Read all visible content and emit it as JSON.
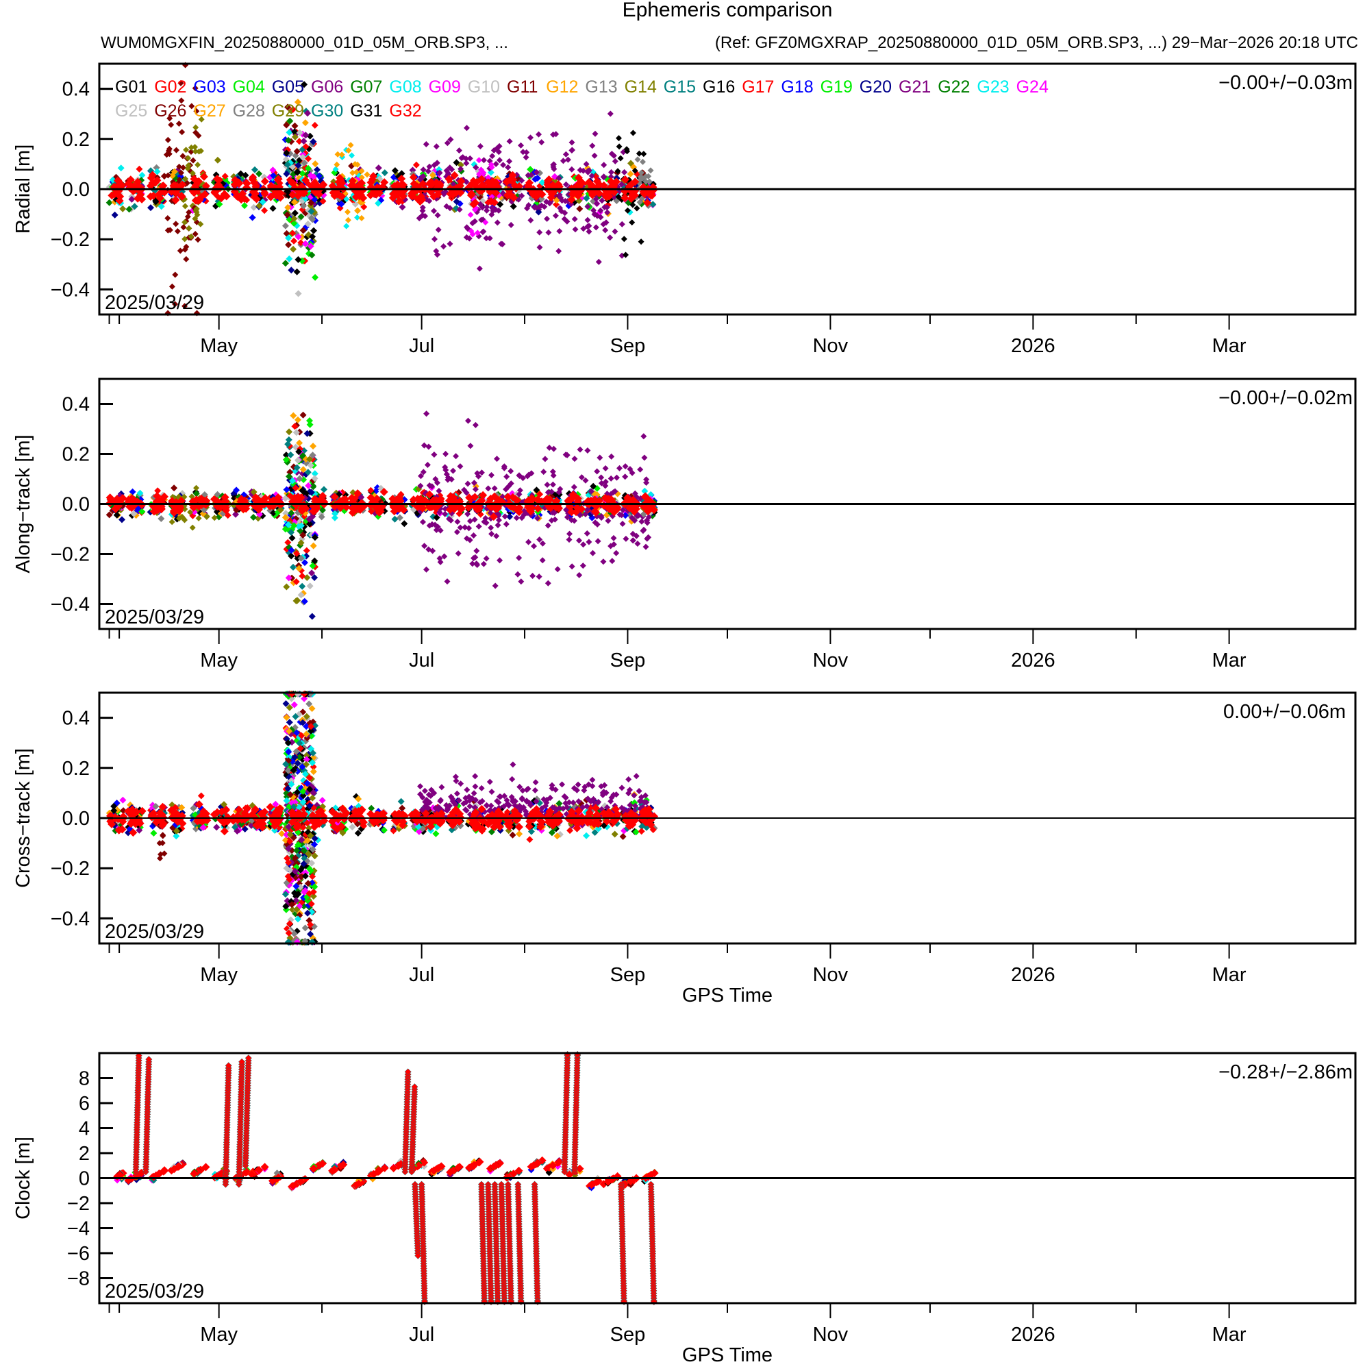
{
  "chart_data": {
    "type": "scatter",
    "title": "Ephemeris comparison",
    "subtitle_left": "WUM0MGXFIN_20250880000_01D_05M_ORB.SP3, ...",
    "subtitle_right": "(Ref: GFZ0MGXRAP_20250880000_01D_05M_ORB.SP3, ...) 29−Mar−2026 20:18 UTC",
    "xlabel": "GPS Time",
    "xrange": [
      "2025-03-26",
      "2026-04-08"
    ],
    "data_end": "2025-09-10",
    "x_ticks_major": [
      {
        "date": "2025-05-01",
        "label": "May"
      },
      {
        "date": "2025-07-01",
        "label": "Jul"
      },
      {
        "date": "2025-09-01",
        "label": "Sep"
      },
      {
        "date": "2025-11-01",
        "label": "Nov"
      },
      {
        "date": "2026-01-01",
        "label": "2026"
      },
      {
        "date": "2026-03-01",
        "label": "Mar"
      }
    ],
    "x_ticks_minor": [
      "2025-04-01",
      "2025-06-01",
      "2025-08-01",
      "2025-10-01",
      "2025-12-01",
      "2026-02-01"
    ],
    "legend": {
      "placement": "top-left",
      "entries": [
        {
          "name": "G01",
          "color": "#000000"
        },
        {
          "name": "G02",
          "color": "#ff0000"
        },
        {
          "name": "G03",
          "color": "#0000ff"
        },
        {
          "name": "G04",
          "color": "#00ee00"
        },
        {
          "name": "G05",
          "color": "#00008b"
        },
        {
          "name": "G06",
          "color": "#800080"
        },
        {
          "name": "G07",
          "color": "#008000"
        },
        {
          "name": "G08",
          "color": "#00eeee"
        },
        {
          "name": "G09",
          "color": "#ff00ff"
        },
        {
          "name": "G10",
          "color": "#c0c0c0"
        },
        {
          "name": "G11",
          "color": "#800000"
        },
        {
          "name": "G12",
          "color": "#ffa500"
        },
        {
          "name": "G13",
          "color": "#808080"
        },
        {
          "name": "G14",
          "color": "#808000"
        },
        {
          "name": "G15",
          "color": "#008080"
        },
        {
          "name": "G16",
          "color": "#000000"
        },
        {
          "name": "G17",
          "color": "#ff0000"
        },
        {
          "name": "G18",
          "color": "#0000ff"
        },
        {
          "name": "G19",
          "color": "#00ee00"
        },
        {
          "name": "G20",
          "color": "#00008b"
        },
        {
          "name": "G21",
          "color": "#800080"
        },
        {
          "name": "G22",
          "color": "#008000"
        },
        {
          "name": "G23",
          "color": "#00eeee"
        },
        {
          "name": "G24",
          "color": "#ff00ff"
        },
        {
          "name": "G25",
          "color": "#c0c0c0"
        },
        {
          "name": "G26",
          "color": "#800000"
        },
        {
          "name": "G27",
          "color": "#ffa500"
        },
        {
          "name": "G28",
          "color": "#808080"
        },
        {
          "name": "G29",
          "color": "#808000"
        },
        {
          "name": "G30",
          "color": "#008080"
        },
        {
          "name": "G31",
          "color": "#000000"
        },
        {
          "name": "G32",
          "color": "#ff0000"
        }
      ]
    },
    "panels": [
      {
        "id": "radial",
        "ylabel": "Radial [m]",
        "ylim": [
          -0.5,
          0.5
        ],
        "yticks": [
          {
            "v": 0.4,
            "label": "0.4"
          },
          {
            "v": 0.2,
            "label": "0.2"
          },
          {
            "v": 0.0,
            "label": "0.0"
          },
          {
            "v": -0.2,
            "label": "−0.2"
          },
          {
            "v": -0.4,
            "label": "−0.4"
          }
        ],
        "stats": "−0.00+/−0.03m",
        "date_label": "2025/03/29",
        "show_legend": true,
        "show_xlabel": false,
        "core_spread": 0.03,
        "outliers": [
          {
            "prn": "G26",
            "from": "2025-04-15",
            "to": "2025-04-25",
            "spread": 0.22,
            "count": 70
          },
          {
            "prn": "G14",
            "from": "2025-04-20",
            "to": "2025-04-26",
            "spread": 0.12,
            "count": 30
          },
          {
            "prn": "G06",
            "from": "2025-06-30",
            "to": "2025-08-31",
            "spread": 0.11,
            "count": 260
          },
          {
            "prn": "G08",
            "from": "2025-06-05",
            "to": "2025-06-12",
            "spread": 0.08,
            "count": 20
          },
          {
            "prn": "G12",
            "from": "2025-06-05",
            "to": "2025-06-15",
            "spread": 0.08,
            "count": 20
          },
          {
            "prn": "G09",
            "from": "2025-07-15",
            "to": "2025-07-25",
            "spread": 0.1,
            "count": 25
          },
          {
            "prn": "G01",
            "from": "2025-08-29",
            "to": "2025-09-06",
            "spread": 0.12,
            "count": 25
          },
          {
            "prn": "G13",
            "from": "2025-09-03",
            "to": "2025-09-08",
            "spread": 0.08,
            "count": 20
          }
        ],
        "burst": {
          "from": "2025-05-21",
          "to": "2025-05-30",
          "spread": 0.16,
          "count": 220
        }
      },
      {
        "id": "along",
        "ylabel": "Along−track [m]",
        "ylim": [
          -0.5,
          0.5
        ],
        "yticks": [
          {
            "v": 0.4,
            "label": "0.4"
          },
          {
            "v": 0.2,
            "label": "0.2"
          },
          {
            "v": 0.0,
            "label": "0.0"
          },
          {
            "v": -0.2,
            "label": "−0.2"
          },
          {
            "v": -0.4,
            "label": "−0.4"
          }
        ],
        "stats": "−0.00+/−0.02m",
        "date_label": "2025/03/29",
        "show_legend": false,
        "show_xlabel": false,
        "core_spread": 0.02,
        "outliers": [
          {
            "prn": "G06",
            "from": "2025-06-30",
            "to": "2025-09-08",
            "spread": 0.13,
            "count": 300
          },
          {
            "prn": "G14",
            "from": "2025-04-15",
            "to": "2025-04-30",
            "spread": 0.04,
            "count": 30
          }
        ],
        "burst": {
          "from": "2025-05-21",
          "to": "2025-05-30",
          "spread": 0.18,
          "count": 220
        }
      },
      {
        "id": "cross",
        "ylabel": "Cross−track [m]",
        "ylim": [
          -0.5,
          0.5
        ],
        "yticks": [
          {
            "v": 0.4,
            "label": "0.4"
          },
          {
            "v": 0.2,
            "label": "0.2"
          },
          {
            "v": 0.0,
            "label": "0.0"
          },
          {
            "v": -0.2,
            "label": "−0.2"
          },
          {
            "v": -0.4,
            "label": "−0.4"
          }
        ],
        "stats": "0.00+/−0.06m",
        "date_label": "2025/03/29",
        "show_legend": false,
        "show_xlabel": true,
        "core_spread": 0.025,
        "outliers": [
          {
            "prn": "G06",
            "from": "2025-06-30",
            "to": "2025-09-08",
            "spread": 0.07,
            "count": 260,
            "positive": true
          },
          {
            "prn": "G11",
            "from": "2025-04-13",
            "to": "2025-04-15",
            "spread": 0.08,
            "count": 8,
            "negative": true
          }
        ],
        "burst": {
          "from": "2025-05-21",
          "to": "2025-05-30",
          "spread": 0.3,
          "count": 500
        }
      },
      {
        "id": "clock",
        "ylabel": "Clock [m]",
        "ylim": [
          -10,
          10
        ],
        "yticks": [
          {
            "v": 8,
            "label": "8"
          },
          {
            "v": 6,
            "label": "6"
          },
          {
            "v": 4,
            "label": "4"
          },
          {
            "v": 2,
            "label": "2"
          },
          {
            "v": 0,
            "label": "0"
          },
          {
            "v": -2,
            "label": "−2"
          },
          {
            "v": -4,
            "label": "−4"
          },
          {
            "v": -6,
            "label": "−6"
          },
          {
            "v": -8,
            "label": "−8"
          }
        ],
        "stats": "−0.28+/−2.86m",
        "date_label": "2025/03/29",
        "show_legend": false,
        "show_xlabel": true,
        "ramps": [
          {
            "date": "2025-04-06",
            "from": 0.5,
            "to": 9.8
          },
          {
            "date": "2025-04-09",
            "from": 0.5,
            "to": 9.5
          },
          {
            "date": "2025-05-03",
            "from": -0.5,
            "to": 9.0
          },
          {
            "date": "2025-05-07",
            "from": -0.5,
            "to": 9.3
          },
          {
            "date": "2025-05-09",
            "from": 1.0,
            "to": 9.6
          },
          {
            "date": "2025-06-26",
            "from": 0.5,
            "to": 8.5
          },
          {
            "date": "2025-06-28",
            "from": 0.5,
            "to": 7.3
          },
          {
            "date": "2025-08-13",
            "from": 0.5,
            "to": 10
          },
          {
            "date": "2025-08-16",
            "from": 0.5,
            "to": 10
          },
          {
            "date": "2025-06-29",
            "from": -0.5,
            "to": -6.2
          },
          {
            "date": "2025-07-01",
            "from": -0.5,
            "to": -10
          },
          {
            "date": "2025-07-19",
            "from": -0.5,
            "to": -10
          },
          {
            "date": "2025-07-21",
            "from": -0.5,
            "to": -10
          },
          {
            "date": "2025-07-23",
            "from": -0.5,
            "to": -10
          },
          {
            "date": "2025-07-25",
            "from": -0.5,
            "to": -10
          },
          {
            "date": "2025-07-27",
            "from": -0.5,
            "to": -10
          },
          {
            "date": "2025-07-30",
            "from": -0.5,
            "to": -10
          },
          {
            "date": "2025-08-04",
            "from": -0.5,
            "to": -10
          },
          {
            "date": "2025-08-30",
            "from": -0.5,
            "to": -10
          },
          {
            "date": "2025-09-08",
            "from": -0.5,
            "to": -10
          }
        ]
      }
    ]
  }
}
